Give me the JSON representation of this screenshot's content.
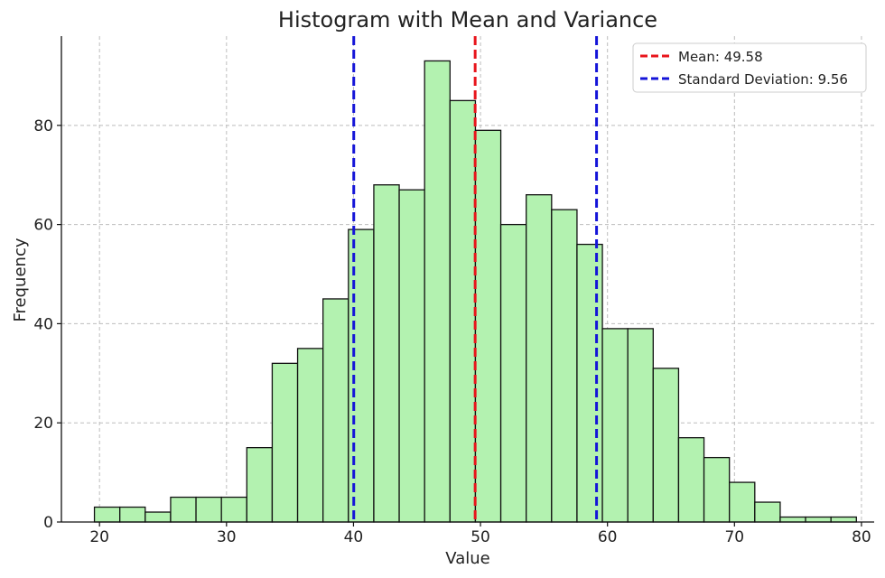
{
  "chart_data": {
    "type": "bar",
    "title": "Histogram with Mean and Variance",
    "xlabel": "Value",
    "ylabel": "Frequency",
    "xlim": [
      17,
      81
    ],
    "ylim": [
      0,
      98
    ],
    "xticks": [
      20,
      30,
      40,
      50,
      60,
      70,
      80
    ],
    "yticks": [
      0,
      20,
      40,
      60,
      80
    ],
    "grid": true,
    "legend_position": "top-right",
    "bin_start": 19.6,
    "bin_width": 2.0,
    "counts": [
      3,
      3,
      2,
      5,
      5,
      5,
      15,
      32,
      35,
      45,
      59,
      68,
      67,
      93,
      85,
      79,
      60,
      66,
      63,
      56,
      39,
      39,
      31,
      17,
      13,
      8,
      4,
      1,
      1,
      1
    ],
    "bar_color": "#b3f2b0",
    "bar_edge_color": "#111111",
    "lines": [
      {
        "name": "Mean: 49.58",
        "x": 49.58,
        "color": "#e8141b",
        "style": "dashed"
      },
      {
        "name": "Standard Deviation: 9.56",
        "x": 40.02,
        "color": "#1414d8",
        "style": "dashed",
        "in_legend": true
      },
      {
        "name": "",
        "x": 59.14,
        "color": "#1414d8",
        "style": "dashed",
        "in_legend": false
      }
    ],
    "legend": [
      {
        "label": "Mean: 49.58",
        "color": "#e8141b"
      },
      {
        "label": "Standard Deviation: 9.56",
        "color": "#1414d8"
      }
    ]
  }
}
